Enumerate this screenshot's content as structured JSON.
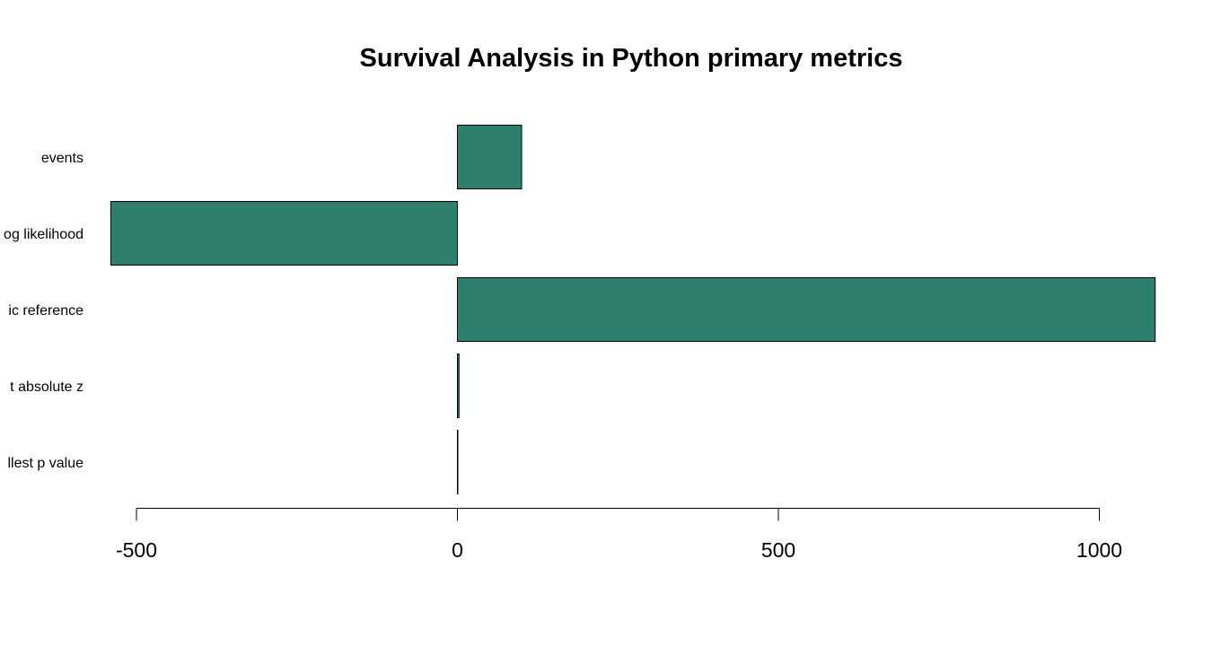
{
  "chart_data": {
    "type": "bar",
    "orientation": "horizontal",
    "title": "Survival Analysis in Python primary metrics",
    "xlabel": "",
    "ylabel": "",
    "categories": [
      "events",
      "log likelihood",
      "AIC reference",
      "largest absolute z",
      "smallest p value"
    ],
    "category_labels_visible": [
      "events",
      "og likelihood",
      "ic reference",
      "t absolute z",
      "llest p value"
    ],
    "values": [
      100,
      -540,
      1087,
      2.5,
      0.0
    ],
    "xlim": [
      -500,
      1087
    ],
    "xticks": [
      -500,
      0,
      500,
      1000
    ],
    "xtick_labels": [
      "-500",
      "0",
      "500",
      "1000"
    ],
    "bar_color": "#2e7f6e",
    "edge_color": "#000000",
    "grid": false,
    "legend": "none"
  }
}
